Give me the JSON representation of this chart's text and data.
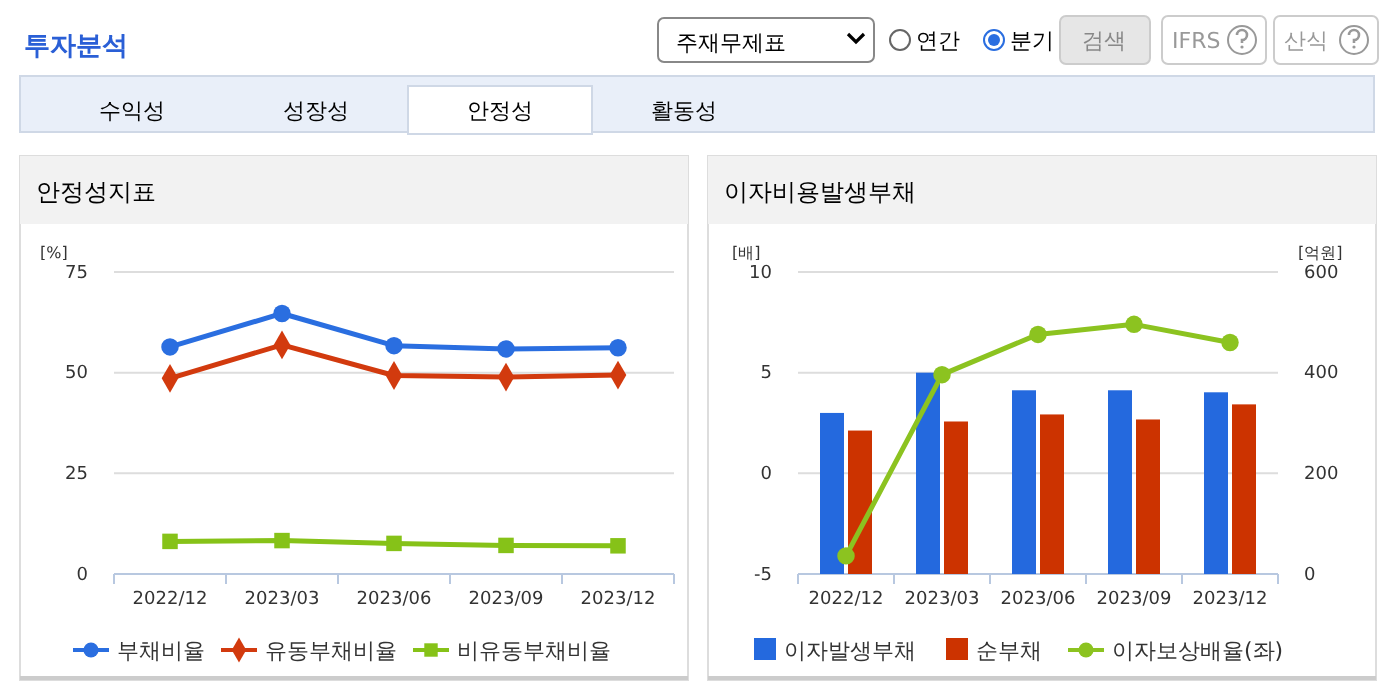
{
  "chart_data": [
    {
      "type": "other",
      "title": "투자분석",
      "annotations": [
        "주재무제표",
        "연간",
        "분기",
        "검색",
        "IFRS",
        "산식",
        "수익성",
        "성장성",
        "안정성",
        "활동성"
      ]
    },
    {
      "type": "line",
      "title": "안정성지표",
      "ylabel": "[%]",
      "categories": [
        "2022/12",
        "2023/03",
        "2023/06",
        "2023/09",
        "2023/12"
      ],
      "ylim": [
        0,
        75
      ],
      "yticks": [
        0,
        25,
        50,
        75
      ],
      "grid": "y",
      "legend": "bottom",
      "series": [
        {
          "name": "부채비율",
          "color": "#2a6ee0",
          "marker": "circle",
          "values": [
            56.4,
            64.7,
            56.7,
            55.9,
            56.2
          ]
        },
        {
          "name": "유동부채비율",
          "color": "#d23a0e",
          "marker": "diamond",
          "values": [
            48.6,
            56.9,
            49.3,
            48.9,
            49.4
          ]
        },
        {
          "name": "비유동부채비율",
          "color": "#86c218",
          "marker": "square",
          "values": [
            8.1,
            8.3,
            7.6,
            7.1,
            7.0
          ]
        }
      ]
    },
    {
      "type": "bar",
      "title": "이자비용발생부채",
      "ylabel": "[배]",
      "y2label": "[억원]",
      "categories": [
        "2022/12",
        "2023/03",
        "2023/06",
        "2023/09",
        "2023/12"
      ],
      "ylim": [
        -5,
        10
      ],
      "yticks": [
        -5,
        0,
        5,
        10
      ],
      "y2lim": [
        0,
        600
      ],
      "y2ticks": [
        0,
        200,
        400,
        600
      ],
      "grid": "y",
      "legend": "bottom",
      "series": [
        {
          "name": "이자발생부채",
          "color": "#2469de",
          "axis": "y2",
          "values": [
            320,
            400,
            365,
            365,
            361
          ]
        },
        {
          "name": "순부채",
          "color": "#cc3300",
          "axis": "y2",
          "values": [
            285,
            303,
            317,
            307,
            337
          ]
        },
        {
          "name": "이자보상배율(좌)",
          "type": "line",
          "marker": "circle",
          "color": "#8cc320",
          "axis": "y",
          "values": [
            -4.1,
            4.9,
            6.9,
            7.4,
            6.5
          ]
        }
      ]
    }
  ]
}
